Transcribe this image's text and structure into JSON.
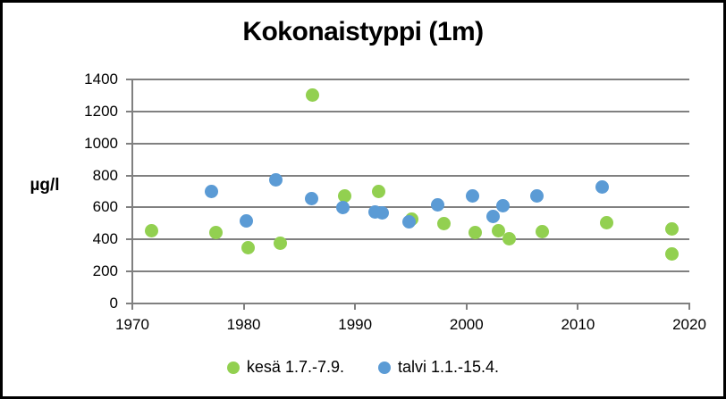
{
  "window": {
    "background_color": "#ffffff",
    "frame_border_color": "#000000",
    "gridline_color": "#808080",
    "text_color": "#000000"
  },
  "chart_data": {
    "type": "scatter",
    "title": "Kokonaistyppi (1m)",
    "ylabel": "µg/l",
    "xlabel": "",
    "xlim": [
      1970,
      2020
    ],
    "ylim": [
      0,
      1400
    ],
    "x_ticks": [
      1970,
      1980,
      1990,
      2000,
      2010,
      2020
    ],
    "y_ticks": [
      0,
      200,
      400,
      600,
      800,
      1000,
      1200,
      1400
    ],
    "grid": "horizontal",
    "legend_position": "bottom",
    "series": [
      {
        "name": "kesä 1.7.-7.9.",
        "color": "#92D050",
        "points": [
          {
            "x": 1971.7,
            "y": 455
          },
          {
            "x": 1977.5,
            "y": 445
          },
          {
            "x": 1980.4,
            "y": 350
          },
          {
            "x": 1983.3,
            "y": 375
          },
          {
            "x": 1986.2,
            "y": 1300
          },
          {
            "x": 1989.1,
            "y": 670
          },
          {
            "x": 1992.1,
            "y": 700
          },
          {
            "x": 1995.1,
            "y": 525
          },
          {
            "x": 1998.0,
            "y": 500
          },
          {
            "x": 2000.8,
            "y": 445
          },
          {
            "x": 2002.9,
            "y": 455
          },
          {
            "x": 2003.8,
            "y": 405
          },
          {
            "x": 2006.8,
            "y": 450
          },
          {
            "x": 2012.6,
            "y": 505
          },
          {
            "x": 2018.4,
            "y": 465
          },
          {
            "x": 2018.4,
            "y": 310
          }
        ]
      },
      {
        "name": "talvi 1.1.-15.4.",
        "color": "#5B9BD5",
        "points": [
          {
            "x": 1977.1,
            "y": 700
          },
          {
            "x": 1980.2,
            "y": 515
          },
          {
            "x": 1982.9,
            "y": 770
          },
          {
            "x": 1986.1,
            "y": 655
          },
          {
            "x": 1988.9,
            "y": 600
          },
          {
            "x": 1991.8,
            "y": 570
          },
          {
            "x": 1992.4,
            "y": 565
          },
          {
            "x": 1994.8,
            "y": 510
          },
          {
            "x": 1997.4,
            "y": 615
          },
          {
            "x": 2000.5,
            "y": 670
          },
          {
            "x": 2002.4,
            "y": 545
          },
          {
            "x": 2003.3,
            "y": 610
          },
          {
            "x": 2006.3,
            "y": 670
          },
          {
            "x": 2012.2,
            "y": 730
          }
        ]
      }
    ]
  }
}
